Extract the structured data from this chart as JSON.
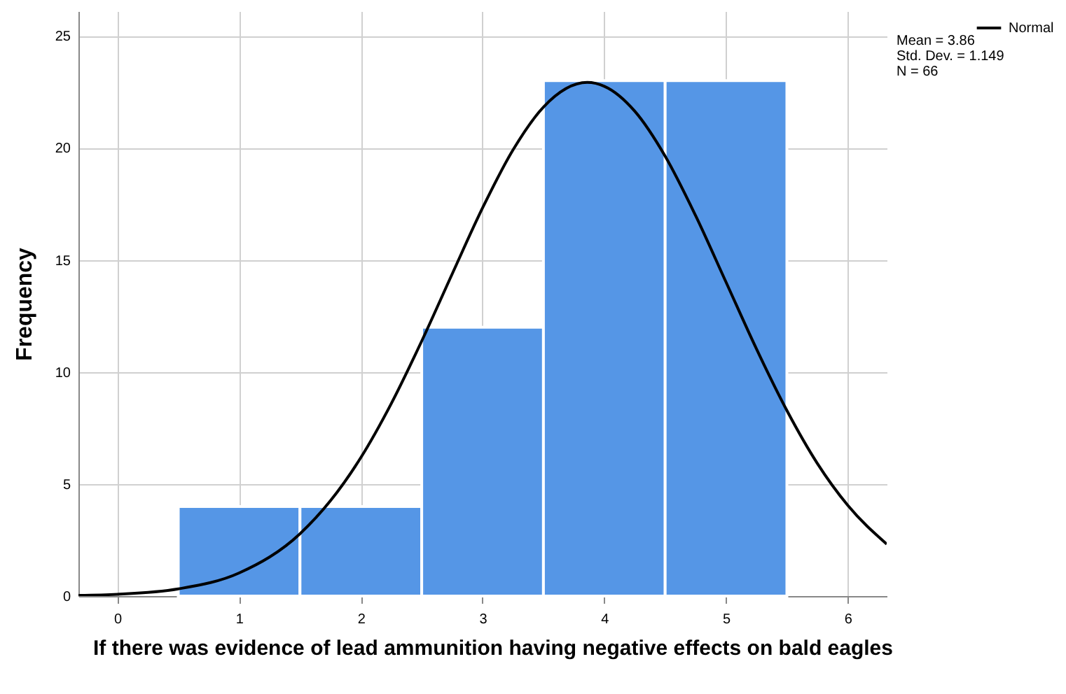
{
  "chart_data": {
    "type": "histogram",
    "xlabel": "If there was evidence of lead ammunition having negative effects on bald eagles",
    "ylabel": "Frequency",
    "bins": [
      0.5,
      1.5,
      2.5,
      3.5,
      4.5,
      5.5
    ],
    "values": [
      4,
      4,
      12,
      23,
      23
    ],
    "color": "#5596e6",
    "series": [
      {
        "name": "Normal",
        "type": "line",
        "color": "#000000",
        "x": [
          -0.32,
          0,
          0.5,
          1,
          1.5,
          1.75,
          2,
          2.25,
          2.5,
          2.75,
          3,
          3.25,
          3.5,
          3.86,
          4,
          4.25,
          4.5,
          4.75,
          5,
          5.25,
          5.5,
          5.75,
          6,
          6.32
        ],
        "values": [
          0.03,
          0.08,
          0.32,
          1.03,
          2.78,
          4.25,
          6.18,
          8.59,
          11.38,
          14.37,
          17.32,
          19.91,
          21.82,
          22.92,
          22.75,
          21.64,
          19.63,
          16.98,
          14.01,
          11.03,
          8.28,
          5.92,
          4.05,
          2.32
        ]
      }
    ],
    "xlim": [
      -0.32,
      6.32
    ],
    "xticks": [
      0,
      1,
      2,
      3,
      4,
      5,
      6
    ],
    "ylim": [
      0,
      26.1
    ],
    "yticks": [
      0,
      5,
      10,
      15,
      20,
      25
    ],
    "grid": true,
    "legend": "top right",
    "annotations": [
      "Mean = 3.86",
      "Std. Dev. = 1.149",
      "N = 66"
    ]
  }
}
